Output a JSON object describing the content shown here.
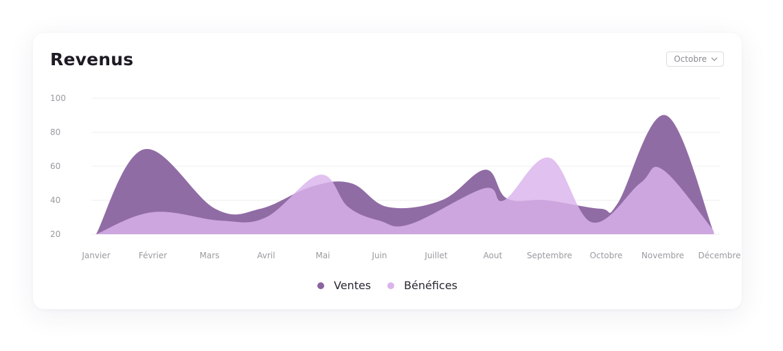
{
  "header": {
    "title": "Revenus",
    "month_select": "Octobre"
  },
  "legend": [
    {
      "name": "Ventes",
      "color": "#8a64a0"
    },
    {
      "name": "Bénéfices",
      "color": "#dbb3ec"
    }
  ],
  "chart_data": {
    "type": "area",
    "title": "Revenus",
    "xlabel": "",
    "ylabel": "",
    "categories": [
      "Janvier",
      "Février",
      "Mars",
      "Avril",
      "Mai",
      "Juin",
      "Juillet",
      "Aout",
      "Septembre",
      "Octobre",
      "Novembre",
      "Décembre"
    ],
    "yticks": [
      20,
      40,
      60,
      80,
      100
    ],
    "ylim": [
      20,
      100
    ],
    "grid": true,
    "legend_position": "bottom",
    "series": [
      {
        "name": "Ventes",
        "color": "#8a64a0",
        "x": [
          0,
          0.85,
          2.1,
          2.9,
          3.8,
          4.5,
          5.15,
          6.1,
          6.87,
          7.25,
          7.95,
          8.9,
          9.2,
          10.05,
          10.9
        ],
        "values": [
          20,
          70,
          35,
          35,
          48,
          50,
          36,
          40,
          58,
          41,
          40,
          35,
          38,
          90,
          21
        ]
      },
      {
        "name": "Bénéfices",
        "color": "#dbb3ec",
        "x": [
          0,
          1.0,
          2.2,
          3.0,
          3.95,
          4.45,
          5.0,
          5.55,
          6.85,
          7.2,
          8.0,
          8.75,
          9.6,
          10.0,
          10.9
        ],
        "values": [
          20,
          33,
          28,
          30,
          55,
          36,
          28,
          26,
          47,
          40,
          65,
          27,
          50,
          58,
          22
        ]
      }
    ]
  }
}
